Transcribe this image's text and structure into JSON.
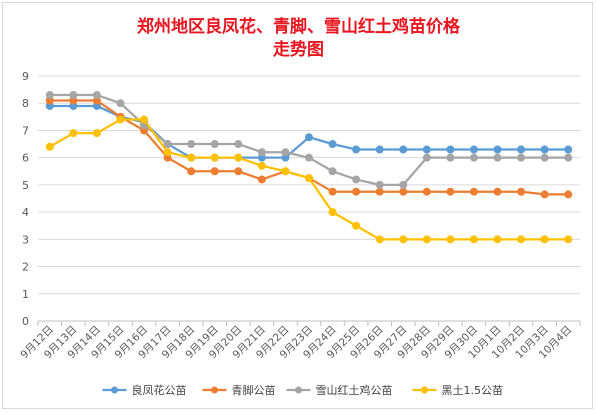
{
  "chart_data": {
    "type": "line",
    "title_line1": "郑州地区良凤花、青脚、雪山红土鸡苗价格",
    "title_line2": "走势图",
    "categories": [
      "9月12日",
      "9月13日",
      "9月14日",
      "9月15日",
      "9月16日",
      "9月17日",
      "9月18日",
      "9月19日",
      "9月20日",
      "9月21日",
      "9月22日",
      "9月23日",
      "9月24日",
      "9月25日",
      "9月26日",
      "9月27日",
      "9月28日",
      "9月29日",
      "9月30日",
      "10月1日",
      "10月2日",
      "10月3日",
      "10月4日"
    ],
    "ylim": [
      0,
      9
    ],
    "yticks": [
      0,
      1,
      2,
      3,
      4,
      5,
      6,
      7,
      8,
      9
    ],
    "grid": true,
    "legend_position": "bottom",
    "series": [
      {
        "name": "良凤花公苗",
        "color": "#5b9bd5",
        "values": [
          7.9,
          7.9,
          7.9,
          7.5,
          7.3,
          6.5,
          6.0,
          6.0,
          6.0,
          6.0,
          6.0,
          6.75,
          6.5,
          6.3,
          6.3,
          6.3,
          6.3,
          6.3,
          6.3,
          6.3,
          6.3,
          6.3,
          6.3
        ]
      },
      {
        "name": "青脚公苗",
        "color": "#ed7d31",
        "values": [
          8.1,
          8.1,
          8.1,
          7.5,
          7.0,
          6.0,
          5.5,
          5.5,
          5.5,
          5.2,
          5.5,
          5.25,
          4.75,
          4.75,
          4.75,
          4.75,
          4.75,
          4.75,
          4.75,
          4.75,
          4.75,
          4.65,
          4.65
        ]
      },
      {
        "name": "雪山红土鸡公苗",
        "color": "#a5a5a5",
        "values": [
          8.3,
          8.3,
          8.3,
          8.0,
          7.2,
          6.5,
          6.5,
          6.5,
          6.5,
          6.2,
          6.2,
          6.0,
          5.5,
          5.2,
          5.0,
          5.0,
          6.0,
          6.0,
          6.0,
          6.0,
          6.0,
          6.0,
          6.0
        ]
      },
      {
        "name": "黑土1.5公苗",
        "color": "#ffc000",
        "values": [
          6.4,
          6.9,
          6.9,
          7.4,
          7.4,
          6.2,
          6.0,
          6.0,
          6.0,
          5.7,
          5.5,
          5.25,
          4.0,
          3.5,
          3.0,
          3.0,
          3.0,
          3.0,
          3.0,
          3.0,
          3.0,
          3.0,
          3.0
        ]
      }
    ]
  }
}
